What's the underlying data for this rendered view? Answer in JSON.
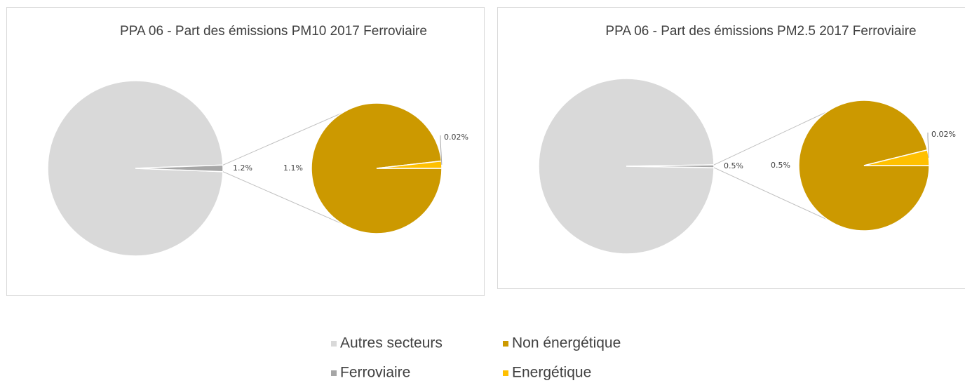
{
  "chart_data": [
    {
      "type": "pie",
      "title": "PPA 06 - Part des émissions PM10 2017 Ferroviaire",
      "categories": [
        "Autres secteurs",
        "Ferroviaire"
      ],
      "values": [
        98.8,
        1.2
      ],
      "value_labels": [
        null,
        "1.2%"
      ],
      "colors": [
        "#d9d9d9",
        "#a6a6a6"
      ],
      "breakdown": {
        "categories": [
          "Non énergétique",
          "Energétique"
        ],
        "values": [
          1.1,
          0.02
        ],
        "value_labels": [
          "1.1%",
          "0.02%"
        ],
        "colors": [
          "#cc9900",
          "#ffc000"
        ]
      }
    },
    {
      "type": "pie",
      "title": "PPA 06 - Part des émissions PM2.5 2017 Ferroviaire",
      "categories": [
        "Autres secteurs",
        "Ferroviaire"
      ],
      "values": [
        99.5,
        0.5
      ],
      "value_labels": [
        null,
        "0.5%"
      ],
      "colors": [
        "#d9d9d9",
        "#a6a6a6"
      ],
      "breakdown": {
        "categories": [
          "Non énergétique",
          "Energétique"
        ],
        "values": [
          0.5,
          0.02
        ],
        "value_labels": [
          "0.5%",
          "0.02%"
        ],
        "colors": [
          "#cc9900",
          "#ffc000"
        ]
      }
    }
  ]
}
